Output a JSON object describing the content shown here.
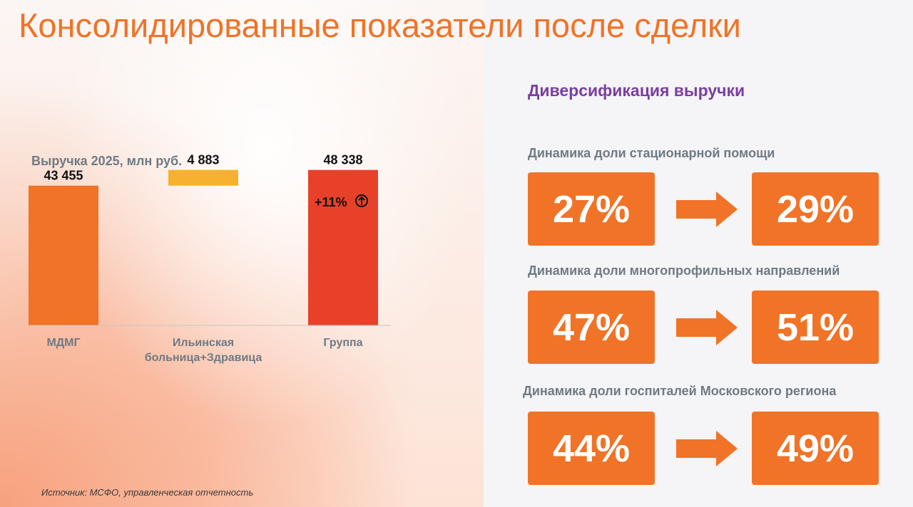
{
  "title": "Консолидированные показатели после сделки",
  "chart_data": {
    "type": "bar",
    "title": "Выручка 2025, млн руб.",
    "categories": [
      "МДМГ",
      "Ильинская\nбольница+Здравица",
      "Группа"
    ],
    "bars": [
      {
        "category": "МДМГ",
        "base": 0,
        "value": 43455,
        "label": "43 455",
        "color": "#f07327"
      },
      {
        "category": "Ильинская больница+Здравица",
        "base": 43455,
        "value": 4883,
        "label": "4 883",
        "color": "#f6b12e"
      },
      {
        "category": "Группа",
        "base": 0,
        "value": 48338,
        "label": "48 338",
        "color": "#e8412a"
      }
    ],
    "annotation": "+11%",
    "ylim": [
      0,
      58000
    ]
  },
  "source_note": "Источник: МСФО, управленческая отчетность",
  "diversification": {
    "title": "Диверсификация выручки",
    "metrics": [
      {
        "label": "Динамика доли стационарной помощи",
        "from": "27%",
        "to": "29%"
      },
      {
        "label": "Динамика доли многопрофильных направлений",
        "from": "47%",
        "to": "51%"
      },
      {
        "label": "Динамика доли госпиталей Московского региона",
        "from": "44%",
        "to": "49%"
      }
    ]
  },
  "colors": {
    "accent": "#f07327",
    "purple": "#7a3fa1",
    "gray_text": "#6f7a84"
  }
}
